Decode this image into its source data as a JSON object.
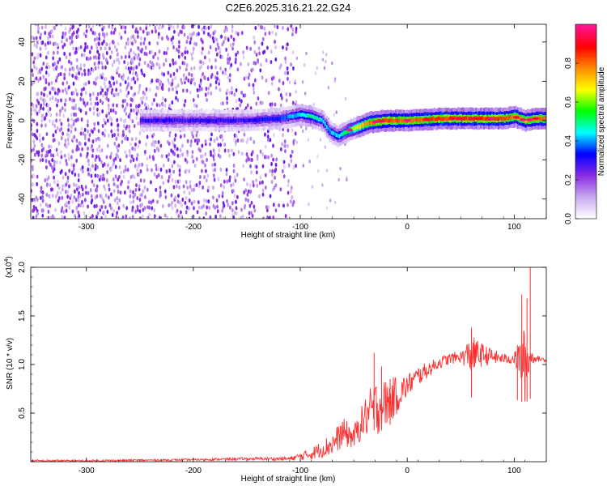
{
  "title": "C2E6.2025.316.21.22.G24",
  "chart_data": [
    {
      "type": "heatmap",
      "xlabel": "Height of straight line (km)",
      "ylabel": "Frequency (Hz)",
      "xlim": [
        -352,
        130
      ],
      "ylim": [
        -50,
        49
      ],
      "xticks": [
        -300,
        -200,
        -100,
        0,
        100
      ],
      "yticks": [
        -40,
        -20,
        0,
        20,
        40
      ],
      "colorbar": {
        "label": "Normalized spectral amplitude",
        "range": [
          0,
          1
        ],
        "ticks": [
          0,
          0.2,
          0.4,
          0.6,
          0.8
        ],
        "tick_labels": [
          "0.0",
          "0.2",
          "0.4",
          "0.6",
          "0.8"
        ],
        "colormap": [
          "#ffffff",
          "#c8a8f0",
          "#8a2be2",
          "#0000ff",
          "#00ffff",
          "#00ff00",
          "#ffff00",
          "#ff8c00",
          "#ff0000",
          "#ff1493"
        ]
      },
      "ridge": {
        "x": [
          -250,
          -200,
          -150,
          -120,
          -100,
          -90,
          -80,
          -72,
          -65,
          -55,
          -45,
          -35,
          -20,
          0,
          30,
          60,
          90,
          100,
          110,
          120,
          130
        ],
        "freq": [
          0,
          0,
          0,
          1,
          3,
          2,
          0,
          -6,
          -8,
          -5,
          -3,
          -1,
          0,
          0,
          1,
          1,
          1,
          2,
          0,
          1,
          1
        ],
        "amplitude": [
          0.3,
          0.3,
          0.3,
          0.35,
          0.45,
          0.5,
          0.45,
          0.4,
          0.45,
          0.55,
          0.7,
          0.8,
          0.85,
          0.8,
          0.85,
          0.85,
          0.85,
          0.8,
          0.75,
          0.8,
          0.8
        ]
      },
      "noise_region": {
        "x_from": -352,
        "x_to": -105,
        "freq_from": -50,
        "freq_to": 49
      }
    },
    {
      "type": "line",
      "xlabel": "Height of straight line (km)",
      "ylabel": "SNR (10 * v/v)",
      "y_multiplier": "(x10",
      "y_exponent": "4",
      "y_multiplier_close": ")",
      "xlim": [
        -352,
        130
      ],
      "ylim": [
        0,
        2.0
      ],
      "xticks": [
        -300,
        -200,
        -100,
        0,
        100
      ],
      "yticks": [
        0.5,
        1.0,
        1.5,
        2.0
      ],
      "ytick_labels": [
        "0.5",
        "1.0",
        "1.5",
        "2.0"
      ],
      "color": "#ff3030",
      "envelope": {
        "x": [
          -352,
          -300,
          -200,
          -150,
          -110,
          -90,
          -70,
          -60,
          -50,
          -40,
          -30,
          -20,
          -10,
          0,
          10,
          20,
          30,
          40,
          50,
          60,
          70,
          80,
          90,
          100,
          105,
          110,
          115,
          120,
          130
        ],
        "y": [
          0.01,
          0.01,
          0.02,
          0.03,
          0.03,
          0.08,
          0.18,
          0.3,
          0.25,
          0.45,
          0.55,
          0.6,
          0.68,
          0.78,
          0.88,
          0.95,
          1.02,
          1.06,
          1.08,
          1.1,
          1.1,
          1.08,
          1.06,
          1.06,
          1.05,
          1.0,
          1.08,
          1.06,
          1.05
        ],
        "noise": [
          0.01,
          0.01,
          0.01,
          0.015,
          0.02,
          0.06,
          0.12,
          0.15,
          0.12,
          0.2,
          0.3,
          0.25,
          0.2,
          0.12,
          0.1,
          0.08,
          0.06,
          0.06,
          0.06,
          0.2,
          0.12,
          0.08,
          0.05,
          0.06,
          0.2,
          0.4,
          0.1,
          0.03,
          0.02
        ]
      },
      "spikes": [
        {
          "x": -31,
          "y": 1.12
        },
        {
          "x": -24,
          "y": 0.98
        },
        {
          "x": -16,
          "y": 0.85
        },
        {
          "x": 60,
          "y": 1.38
        },
        {
          "x": 103,
          "y": 1.2
        },
        {
          "x": 107,
          "y": 1.72
        },
        {
          "x": 112,
          "y": 1.68
        },
        {
          "x": 115,
          "y": 2.0
        }
      ]
    }
  ]
}
